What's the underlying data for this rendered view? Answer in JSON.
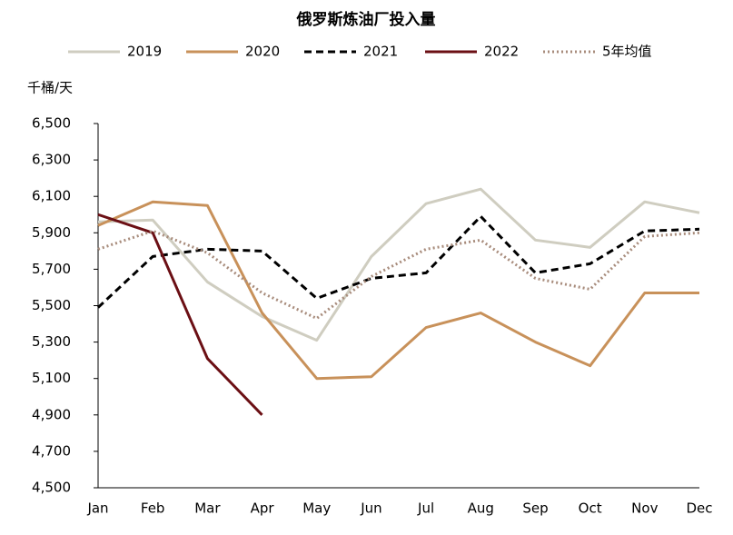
{
  "chart_data": {
    "type": "line",
    "title": "俄罗斯炼油厂投入量",
    "y_label": "千桶/天",
    "categories": [
      "Jan",
      "Feb",
      "Mar",
      "Apr",
      "May",
      "Jun",
      "Jul",
      "Aug",
      "Sep",
      "Oct",
      "Nov",
      "Dec"
    ],
    "ylim": [
      4500,
      6500
    ],
    "yticks": [
      {
        "value": 4500,
        "label": "4,500"
      },
      {
        "value": 4700,
        "label": "4,700"
      },
      {
        "value": 4900,
        "label": "4,900"
      },
      {
        "value": 5100,
        "label": "5,100"
      },
      {
        "value": 5300,
        "label": "5,300"
      },
      {
        "value": 5500,
        "label": "5,500"
      },
      {
        "value": 5700,
        "label": "5,700"
      },
      {
        "value": 5900,
        "label": "5,900"
      },
      {
        "value": 6100,
        "label": "6,100"
      },
      {
        "value": 6300,
        "label": "6,300"
      },
      {
        "value": 6500,
        "label": "6,500"
      }
    ],
    "legend": "top",
    "series": [
      {
        "name": "2019",
        "color": "#cfcdc0",
        "dash": "solid",
        "values": [
          5960,
          5970,
          5630,
          5440,
          5310,
          5770,
          6060,
          6140,
          5860,
          5820,
          6070,
          6010
        ]
      },
      {
        "name": "2020",
        "color": "#c8915a",
        "dash": "solid",
        "values": [
          5940,
          6070,
          6050,
          5460,
          5100,
          5110,
          5380,
          5460,
          5300,
          5170,
          5570,
          5570
        ]
      },
      {
        "name": "2021",
        "color": "#000000",
        "dash": "dashed",
        "values": [
          5490,
          5770,
          5810,
          5800,
          5540,
          5650,
          5680,
          5990,
          5680,
          5730,
          5910,
          5920
        ]
      },
      {
        "name": "2022",
        "color": "#6b0f14",
        "dash": "solid",
        "values": [
          6000,
          5900,
          5210,
          4900,
          null,
          null,
          null,
          null,
          null,
          null,
          null,
          null
        ]
      },
      {
        "name": "5年均值",
        "color": "#a88c7c",
        "dash": "dotted",
        "values": [
          5810,
          5910,
          5790,
          5570,
          5430,
          5660,
          5810,
          5860,
          5650,
          5590,
          5880,
          5900
        ]
      }
    ]
  }
}
